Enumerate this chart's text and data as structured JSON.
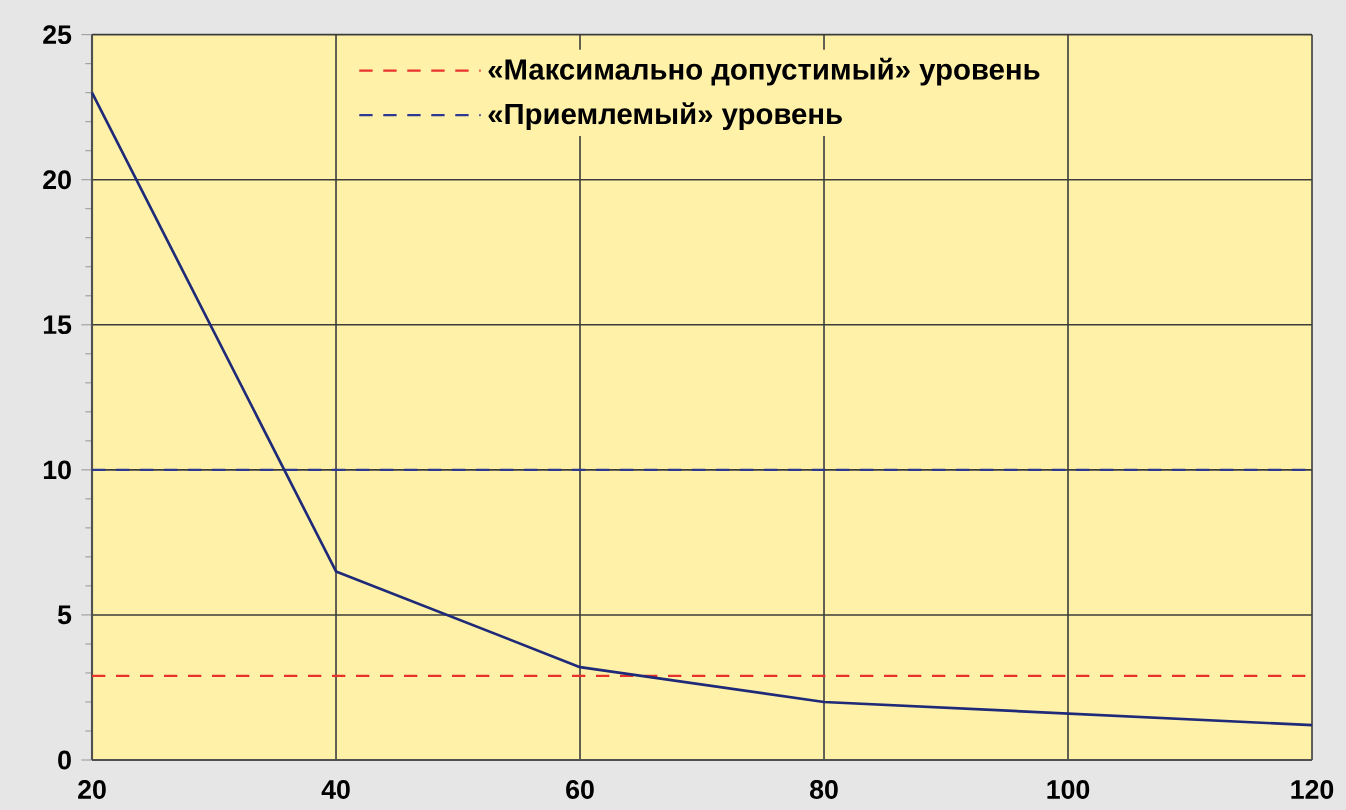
{
  "chart_data": {
    "type": "line",
    "x": [
      20,
      40,
      60,
      80,
      100,
      120
    ],
    "series": [
      {
        "color": "#1f2a78",
        "values": [
          23,
          6.5,
          3.2,
          2.0,
          1.6,
          1.2
        ]
      }
    ],
    "xlim": [
      20,
      120
    ],
    "xticks": [
      20,
      40,
      60,
      80,
      100,
      120
    ],
    "ylim": [
      0,
      25
    ],
    "yticks": [
      0,
      5,
      10,
      15,
      20,
      25
    ],
    "ref_lines": [
      {
        "axis": "y",
        "value": 2.9,
        "label": "«Максимально допустимый» уровень",
        "color": "#e8322c",
        "line_style": "dashed"
      },
      {
        "axis": "y",
        "value": 10,
        "label": "«Приемлемый» уровень",
        "color": "#2b3990",
        "line_style": "dashed"
      }
    ],
    "grid": true,
    "legend": "top",
    "marker": "none"
  }
}
